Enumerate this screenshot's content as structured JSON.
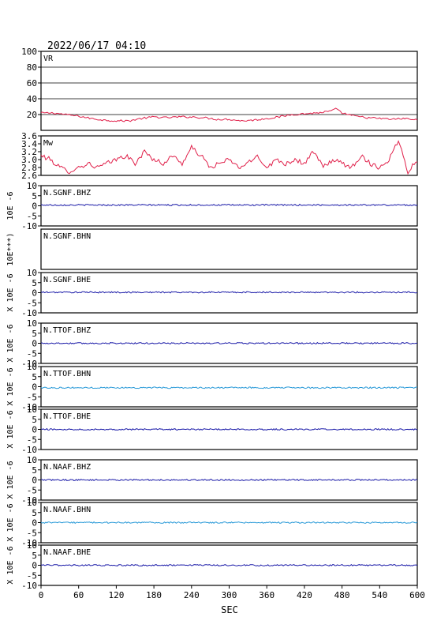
{
  "header": {
    "timestamp": "2022/06/17 04:10"
  },
  "colors": {
    "frame": "#000000",
    "vr": "#e0204a",
    "mw": "#e0204a",
    "trace_dark": "#1a1aa8",
    "trace_light": "#2a9ad8"
  },
  "chart_data": {
    "type": "line",
    "xlabel": "SEC",
    "xlim": [
      0,
      600
    ],
    "xticks": [
      "0",
      "60",
      "120",
      "180",
      "240",
      "300",
      "360",
      "420",
      "480",
      "540",
      "600"
    ],
    "panels": [
      {
        "key": "vr",
        "label": "VR",
        "ylim": [
          0,
          100
        ],
        "yticks": [
          "20",
          "40",
          "60",
          "80",
          "100"
        ],
        "ylabel": "",
        "gridlines": [
          20,
          40,
          60,
          80,
          100
        ],
        "series": [
          {
            "color": "vr",
            "x": [
              0,
              20,
              40,
              60,
              80,
              100,
              120,
              140,
              160,
              180,
              200,
              220,
              240,
              260,
              280,
              300,
              320,
              340,
              360,
              380,
              400,
              420,
              440,
              460,
              470,
              480,
              500,
              520,
              540,
              560,
              580,
              600
            ],
            "y": [
              22,
              22,
              20,
              18,
              15,
              13,
              12,
              12,
              15,
              17,
              16,
              17,
              17,
              16,
              14,
              14,
              12,
              13,
              15,
              17,
              20,
              21,
              22,
              24,
              27,
              22,
              18,
              16,
              15,
              14,
              15,
              13
            ]
          }
        ]
      },
      {
        "key": "mw",
        "label": "Mw",
        "ylim": [
          2.6,
          3.6
        ],
        "yticks": [
          "2.6",
          "2.8",
          "3.0",
          "3.2",
          "3.4",
          "3.6"
        ],
        "ylabel": "",
        "gridlines": [],
        "series": [
          {
            "color": "mw",
            "x": [
              0,
              15,
              30,
              45,
              60,
              75,
              90,
              105,
              120,
              135,
              150,
              165,
              180,
              195,
              210,
              225,
              240,
              255,
              270,
              285,
              300,
              315,
              330,
              345,
              360,
              375,
              390,
              405,
              420,
              435,
              450,
              465,
              480,
              495,
              510,
              525,
              540,
              555,
              570,
              585,
              600
            ],
            "y": [
              3.1,
              3.0,
              2.8,
              2.7,
              2.8,
              2.9,
              2.8,
              2.9,
              3.0,
              3.1,
              2.9,
              3.2,
              3.0,
              2.9,
              3.1,
              2.9,
              3.3,
              3.1,
              2.8,
              2.9,
              3.0,
              2.8,
              2.9,
              3.1,
              2.8,
              3.0,
              2.9,
              3.0,
              2.9,
              3.2,
              2.8,
              3.0,
              2.9,
              2.8,
              3.1,
              2.9,
              2.8,
              3.0,
              3.5,
              2.7,
              3.0
            ]
          }
        ]
      },
      {
        "key": "sgnf_bhz",
        "label": "N.SGNF.BHZ",
        "ylim": [
          -10,
          10
        ],
        "yticks": [
          "-10",
          "-5",
          "0",
          "5",
          "10"
        ],
        "ylabel": "10E -6",
        "series": [
          {
            "color": "trace_dark",
            "level": 0.4
          }
        ]
      },
      {
        "key": "sgnf_bhn",
        "label": "N.SGNF.BHN",
        "ylim": null,
        "yticks": [],
        "ylabel": "10E***)",
        "series": []
      },
      {
        "key": "sgnf_bhe",
        "label": "N.SGNF.BHE",
        "ylim": [
          -10,
          10
        ],
        "yticks": [
          "-10",
          "-5",
          "0",
          "5",
          "10"
        ],
        "ylabel": "X 10E -6",
        "series": [
          {
            "color": "trace_dark",
            "level": 0.2
          }
        ]
      },
      {
        "key": "ttof_bhz",
        "label": "N.TTOF.BHZ",
        "ylim": [
          -10,
          10
        ],
        "yticks": [
          "-10",
          "-5",
          "0",
          "5",
          "10"
        ],
        "ylabel": "X 10E -6",
        "series": [
          {
            "color": "trace_dark",
            "level": 0.0
          }
        ]
      },
      {
        "key": "ttof_bhn",
        "label": "N.TTOF.BHN",
        "ylim": [
          -10,
          10
        ],
        "yticks": [
          "-10",
          "-5",
          "0",
          "5",
          "10"
        ],
        "ylabel": "X 10E -6",
        "series": [
          {
            "color": "trace_light",
            "level": -0.5
          }
        ]
      },
      {
        "key": "ttof_bhe",
        "label": "N.TTOF.BHE",
        "ylim": [
          -10,
          10
        ],
        "yticks": [
          "-10",
          "-5",
          "0",
          "5",
          "10"
        ],
        "ylabel": "X 10E -6",
        "series": [
          {
            "color": "trace_dark",
            "level": 0.0
          }
        ]
      },
      {
        "key": "naaf_bhz",
        "label": "N.NAAF.BHZ",
        "ylim": [
          -10,
          10
        ],
        "yticks": [
          "-10",
          "-5",
          "0",
          "5",
          "10"
        ],
        "ylabel": "X 10E -6",
        "series": [
          {
            "color": "trace_dark",
            "level": 0.0
          }
        ]
      },
      {
        "key": "naaf_bhn",
        "label": "N.NAAF.BHN",
        "ylim": [
          -10,
          10
        ],
        "yticks": [
          "-10",
          "-5",
          "0",
          "5",
          "10"
        ],
        "ylabel": "X 10E -6",
        "series": [
          {
            "color": "trace_light",
            "level": 0.0
          }
        ]
      },
      {
        "key": "naaf_bhe",
        "label": "N.NAAF.BHE",
        "ylim": [
          -10,
          10
        ],
        "yticks": [
          "-10",
          "-5",
          "0",
          "5",
          "10"
        ],
        "ylabel": "X 10E -6",
        "series": [
          {
            "color": "trace_dark",
            "level": 0.0
          }
        ]
      }
    ]
  }
}
